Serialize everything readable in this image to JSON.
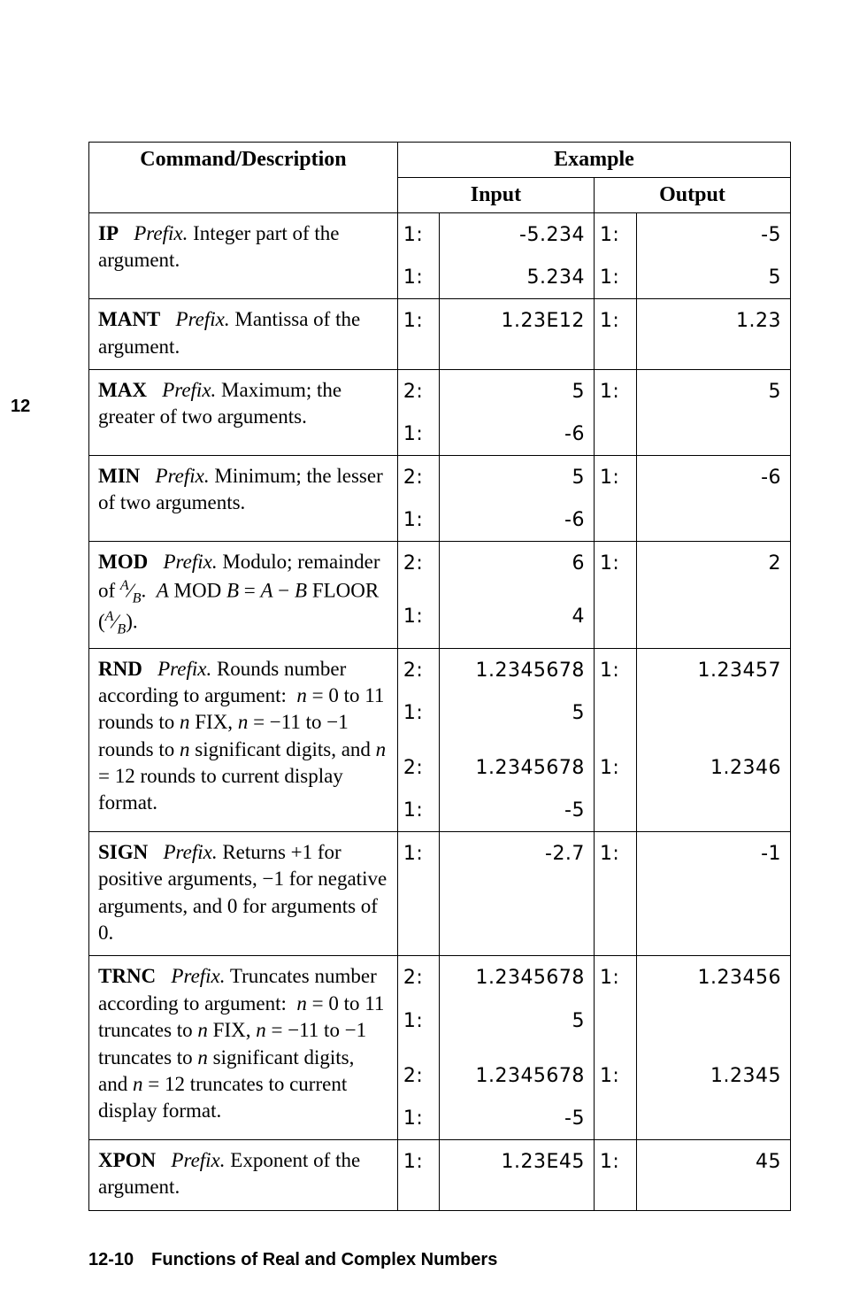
{
  "sideTab": "12",
  "header": {
    "cmdDesc": "Command/Description",
    "example": "Example",
    "input": "Input",
    "output": "Output"
  },
  "rows": [
    {
      "cmd": "IP",
      "desc": "<span class='pre'>Prefix.</span> Integer part of the argument.",
      "in": [
        [
          "1:",
          "-5.234"
        ],
        [
          "1:",
          "5.234"
        ]
      ],
      "out": [
        [
          "1:",
          "-5"
        ],
        [
          "1:",
          "5"
        ]
      ]
    },
    {
      "cmd": "MANT",
      "desc": "<span class='pre'>Prefix.</span> Mantissa of the argument.",
      "in": [
        [
          "1:",
          "1.23E12"
        ]
      ],
      "out": [
        [
          "1:",
          "1.23"
        ]
      ]
    },
    {
      "cmd": "MAX",
      "desc": "<span class='pre'>Prefix.</span> Maximum; the greater of two arguments.",
      "in": [
        [
          "2:",
          "5"
        ],
        [
          "1:",
          "-6"
        ]
      ],
      "out": [
        [
          "1:",
          "5"
        ],
        [
          "",
          ""
        ]
      ]
    },
    {
      "cmd": "MIN",
      "desc": "<span class='pre'>Prefix.</span> Minimum; the lesser of two arguments.",
      "in": [
        [
          "2:",
          "5"
        ],
        [
          "1:",
          "-6"
        ]
      ],
      "out": [
        [
          "1:",
          "-6"
        ],
        [
          "",
          ""
        ]
      ]
    },
    {
      "cmd": "MOD",
      "desc": "<span class='pre'>Prefix.</span> Modulo; remainder of <sup><span class='it'>A</span></sup>∕<sub><span class='it'>B</span></sub>. &nbsp;<span class='it'>A</span> MOD <span class='it'>B</span> = <span class='it'>A</span> − <span class='it'>B</span> FLOOR (<sup><span class='it'>A</span></sup>∕<sub><span class='it'>B</span></sub>).",
      "in": [
        [
          "2:",
          "6"
        ],
        [
          "1:",
          "4"
        ]
      ],
      "out": [
        [
          "1:",
          "2"
        ],
        [
          "",
          ""
        ]
      ]
    },
    {
      "cmd": "RND",
      "desc": "<span class='pre'>Prefix.</span> Rounds number according to argument: &nbsp;<span class='it'>n</span> = 0 to 11 rounds to <span class='it'>n</span> FIX, <span class='it'>n</span> = −11 to −1 rounds to <span class='it'>n</span> significant digits, and <span class='it'>n</span> = 12 rounds to current display format.",
      "in": [
        [
          "2:",
          "1.2345678"
        ],
        [
          "1:",
          "5"
        ],
        [
          "",
          ""
        ],
        [
          "2:",
          "1.2345678"
        ],
        [
          "1:",
          "-5"
        ]
      ],
      "out": [
        [
          "1:",
          "1.23457"
        ],
        [
          "",
          ""
        ],
        [
          "",
          ""
        ],
        [
          "1:",
          "1.2346"
        ],
        [
          "",
          ""
        ]
      ]
    },
    {
      "cmd": "SIGN",
      "desc": "<span class='pre'>Prefix.</span> Returns +1 for positive arguments, −1 for negative arguments, and 0 for arguments of 0.",
      "in": [
        [
          "1:",
          "-2.7"
        ]
      ],
      "out": [
        [
          "1:",
          "-1"
        ]
      ]
    },
    {
      "cmd": "TRNC",
      "desc": "<span class='pre'>Prefix.</span> Truncates number according to argument: &nbsp;<span class='it'>n</span> = 0 to 11 truncates to <span class='it'>n</span> FIX, <span class='it'>n</span> = −11 to −1 truncates to <span class='it'>n</span> significant digits, and <span class='it'>n</span> = 12 truncates to current display format.",
      "in": [
        [
          "2:",
          "1.2345678"
        ],
        [
          "1:",
          "5"
        ],
        [
          "",
          ""
        ],
        [
          "2:",
          "1.2345678"
        ],
        [
          "1:",
          "-5"
        ]
      ],
      "out": [
        [
          "1:",
          "1.23456"
        ],
        [
          "",
          ""
        ],
        [
          "",
          ""
        ],
        [
          "1:",
          "1.2345"
        ],
        [
          "",
          ""
        ]
      ]
    },
    {
      "cmd": "XPON",
      "desc": "<span class='pre'>Prefix.</span> Exponent of the argument.",
      "in": [
        [
          "1:",
          "1.23E45"
        ]
      ],
      "out": [
        [
          "1:",
          "45"
        ]
      ]
    }
  ],
  "footer": "12-10 Functions of Real and Complex Numbers"
}
